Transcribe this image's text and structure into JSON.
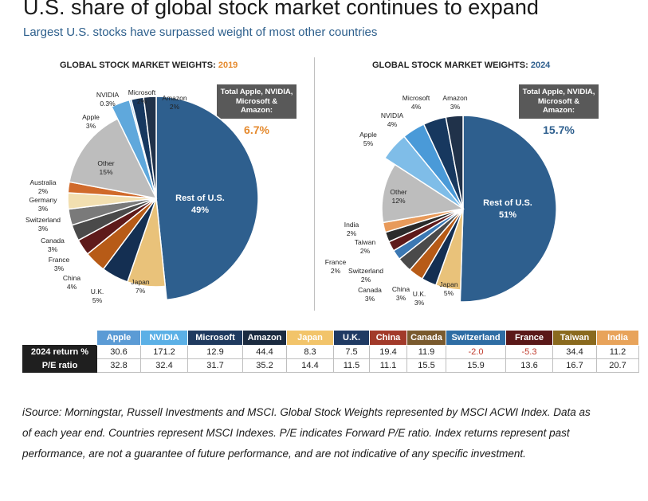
{
  "header": {
    "title": "U.S. share of global stock market continues to expand",
    "subtitle": "Largest U.S. stocks have surpassed weight of most other countries"
  },
  "chart_data": [
    {
      "type": "pie",
      "title": "GLOBAL STOCK MARKET WEIGHTS:",
      "year": "2019",
      "slices": [
        {
          "label": "Rest of U.S.",
          "value": 49,
          "value_label": "49%",
          "color": "#2e5f8e"
        },
        {
          "label": "Japan",
          "value": 7,
          "value_label": "7%",
          "color": "#e9c27a"
        },
        {
          "label": "U.K.",
          "value": 5,
          "value_label": "5%",
          "color": "#142f52"
        },
        {
          "label": "China",
          "value": 4,
          "value_label": "4%",
          "color": "#b75b17"
        },
        {
          "label": "France",
          "value": 3,
          "value_label": "3%",
          "color": "#5e1a1a"
        },
        {
          "label": "Canada",
          "value": 3,
          "value_label": "3%",
          "color": "#4a4a4a"
        },
        {
          "label": "Switzerland",
          "value": 3,
          "value_label": "3%",
          "color": "#7a7a7a"
        },
        {
          "label": "Germany",
          "value": 3,
          "value_label": "3%",
          "color": "#f2dfb0"
        },
        {
          "label": "Australia",
          "value": 2,
          "value_label": "2%",
          "color": "#d06a2b"
        },
        {
          "label": "Other",
          "value": 15,
          "value_label": "15%",
          "color": "#bdbdbd"
        },
        {
          "label": "Apple",
          "value": 3,
          "value_label": "3%",
          "color": "#5fa8dc"
        },
        {
          "label": "NVIDIA",
          "value": 0.3,
          "value_label": "0.3%",
          "color": "#8fc6ee"
        },
        {
          "label": "Microsoft",
          "value": 2,
          "value_label": "2%",
          "color": "#17385f"
        },
        {
          "label": "Amazon",
          "value": 2,
          "value_label": "2%",
          "color": "#20324a"
        }
      ],
      "callout": {
        "text": "Total Apple, NVIDIA, Microsoft & Amazon:",
        "value": "6.7%",
        "value_color": "#e58a2e"
      }
    },
    {
      "type": "pie",
      "title": "GLOBAL STOCK MARKET WEIGHTS:",
      "year": "2024",
      "slices": [
        {
          "label": "Rest of U.S.",
          "value": 51,
          "value_label": "51%",
          "color": "#2e5f8e"
        },
        {
          "label": "Japan",
          "value": 5,
          "value_label": "5%",
          "color": "#e9c27a"
        },
        {
          "label": "U.K.",
          "value": 3,
          "value_label": "3%",
          "color": "#142f52"
        },
        {
          "label": "China",
          "value": 3,
          "value_label": "3%",
          "color": "#b75b17"
        },
        {
          "label": "Canada",
          "value": 3,
          "value_label": "3%",
          "color": "#4a4a4a"
        },
        {
          "label": "Switzerland",
          "value": 2,
          "value_label": "2%",
          "color": "#3b78b3"
        },
        {
          "label": "France",
          "value": 2,
          "value_label": "2%",
          "color": "#5e1a1a"
        },
        {
          "label": "Taiwan",
          "value": 2,
          "value_label": "2%",
          "color": "#2b2b2b"
        },
        {
          "label": "India",
          "value": 2,
          "value_label": "2%",
          "color": "#e89a5a"
        },
        {
          "label": "Other",
          "value": 12,
          "value_label": "12%",
          "color": "#bdbdbd"
        },
        {
          "label": "Apple",
          "value": 5,
          "value_label": "5%",
          "color": "#7fbde8"
        },
        {
          "label": "NVIDIA",
          "value": 4,
          "value_label": "4%",
          "color": "#4a9ad8"
        },
        {
          "label": "Microsoft",
          "value": 4,
          "value_label": "4%",
          "color": "#17385f"
        },
        {
          "label": "Amazon",
          "value": 3,
          "value_label": "3%",
          "color": "#20324a"
        }
      ],
      "callout": {
        "text": "Total Apple, NVIDIA, Microsoft & Amazon:",
        "value": "15.7%",
        "value_color": "#2e5f8e"
      }
    },
    {
      "type": "table",
      "columns": [
        {
          "label": "Apple",
          "color": "#5b9bd5"
        },
        {
          "label": "NVIDIA",
          "color": "#5bb0e6"
        },
        {
          "label": "Microsoft",
          "color": "#1f3a5f"
        },
        {
          "label": "Amazon",
          "color": "#1b2b40"
        },
        {
          "label": "Japan",
          "color": "#f2c46a"
        },
        {
          "label": "U.K.",
          "color": "#1f3a63"
        },
        {
          "label": "China",
          "color": "#a23a2a"
        },
        {
          "label": "Canada",
          "color": "#7a5a2e"
        },
        {
          "label": "Switzerland",
          "color": "#2e6da4"
        },
        {
          "label": "France",
          "color": "#5a1818"
        },
        {
          "label": "Taiwan",
          "color": "#8a6a1e"
        },
        {
          "label": "India",
          "color": "#e8a35a"
        }
      ],
      "rows": [
        {
          "label": "2024 return %",
          "values": [
            "30.6",
            "171.2",
            "12.9",
            "44.4",
            "8.3",
            "7.5",
            "19.4",
            "11.9",
            "-2.0",
            "-5.3",
            "34.4",
            "11.2"
          ]
        },
        {
          "label": "P/E ratio",
          "values": [
            "32.8",
            "32.4",
            "31.7",
            "35.2",
            "14.4",
            "11.5",
            "11.1",
            "15.5",
            "15.9",
            "13.6",
            "16.7",
            "20.7"
          ]
        }
      ],
      "negative_color": "#c0392b"
    }
  ],
  "footer": {
    "source": "iSource: Morningstar, Russell Investments and MSCI. Global Stock Weights represented by MSCI ACWI Index. Data as of each year end. Countries represent MSCI Indexes. P/E indicates Forward P/E ratio. Index returns represent past performance, are not a guarantee of future performance, and are not indicative of any specific investment."
  }
}
